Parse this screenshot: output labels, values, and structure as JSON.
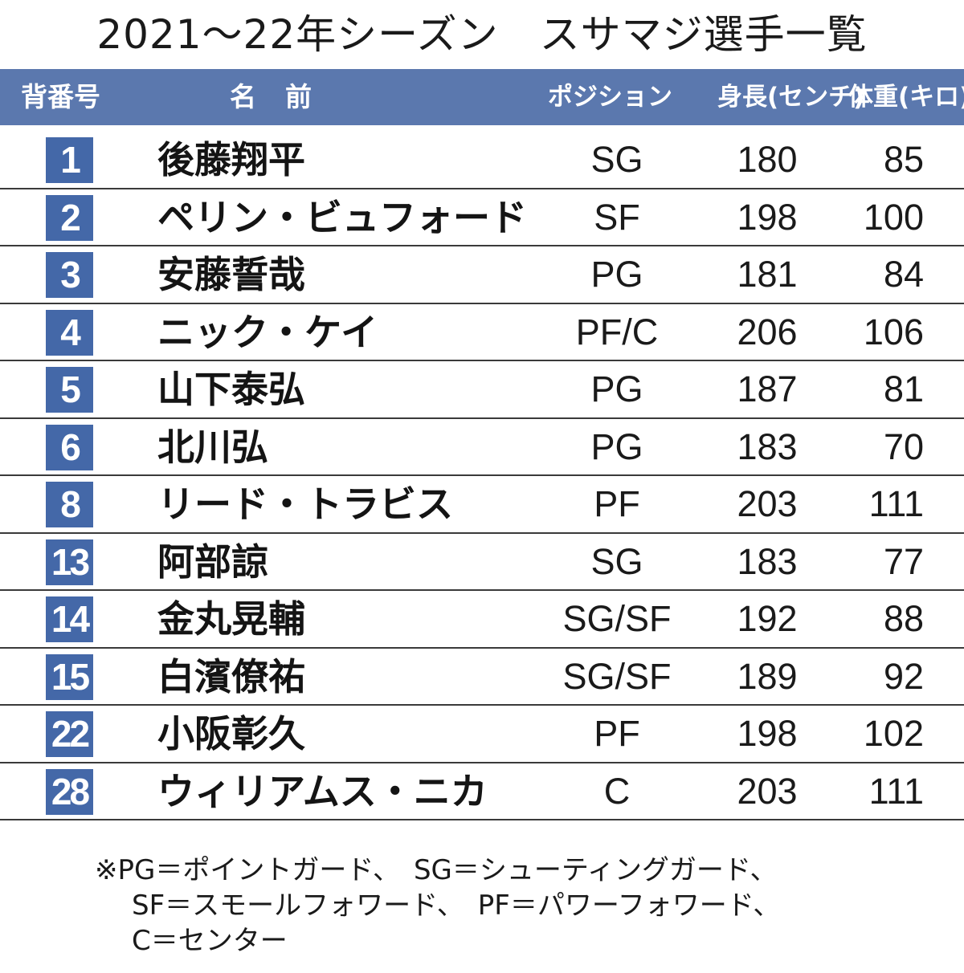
{
  "title": "2021～22年シーズン　スサマジ選手一覧",
  "columns": {
    "number": "背番号",
    "name": "名前",
    "position": "ポジション",
    "height": "身長(センチ)",
    "weight": "体重(キロ)"
  },
  "players": [
    {
      "number": "1",
      "name": "後藤翔平",
      "position": "SG",
      "height": "180",
      "weight": "85"
    },
    {
      "number": "2",
      "name": "ペリン・ビュフォード",
      "position": "SF",
      "height": "198",
      "weight": "100"
    },
    {
      "number": "3",
      "name": "安藤誓哉",
      "position": "PG",
      "height": "181",
      "weight": "84"
    },
    {
      "number": "4",
      "name": "ニック・ケイ",
      "position": "PF/C",
      "height": "206",
      "weight": "106"
    },
    {
      "number": "5",
      "name": "山下泰弘",
      "position": "PG",
      "height": "187",
      "weight": "81"
    },
    {
      "number": "6",
      "name": "北川弘",
      "position": "PG",
      "height": "183",
      "weight": "70"
    },
    {
      "number": "8",
      "name": "リード・トラビス",
      "position": "PF",
      "height": "203",
      "weight": "111"
    },
    {
      "number": "13",
      "name": "阿部諒",
      "position": "SG",
      "height": "183",
      "weight": "77"
    },
    {
      "number": "14",
      "name": "金丸晃輔",
      "position": "SG/SF",
      "height": "192",
      "weight": "88"
    },
    {
      "number": "15",
      "name": "白濱僚祐",
      "position": "SG/SF",
      "height": "189",
      "weight": "92"
    },
    {
      "number": "22",
      "name": "小阪彰久",
      "position": "PF",
      "height": "198",
      "weight": "102"
    },
    {
      "number": "28",
      "name": "ウィリアムス・ニカ",
      "position": "C",
      "height": "203",
      "weight": "111"
    }
  ],
  "footnote": {
    "line1": "※PG＝ポイントガード、　SG＝シューティングガード、",
    "line2": "SF＝スモールフォワード、　PF＝パワーフォワード、",
    "line3": "C＝センター"
  },
  "colors": {
    "header_bg": "#5b78ae",
    "number_badge": "#4468a8"
  }
}
